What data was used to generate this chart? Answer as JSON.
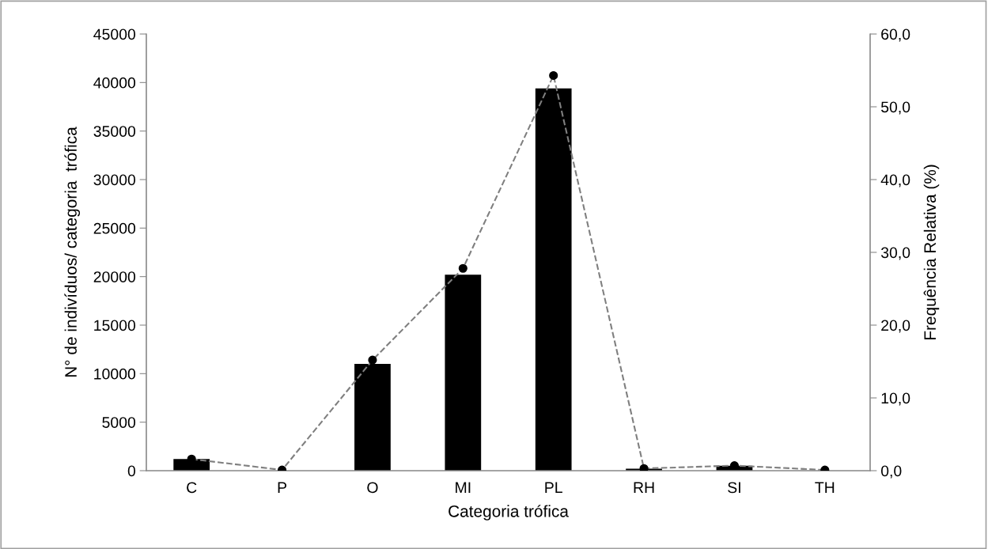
{
  "chart_data": {
    "type": "bar",
    "xlabel": "Categoria trófica",
    "ylabel": "N° de indivíduos/ categoria  trófica",
    "y2label": "Frequência Relativa (%)",
    "categories": [
      "C",
      "P",
      "O",
      "MI",
      "PL",
      "RH",
      "SI",
      "TH"
    ],
    "series": [
      {
        "color": "#000000",
        "values": [
          1200,
          0,
          11000,
          20200,
          39400,
          200,
          500,
          0
        ]
      },
      {
        "type": "line",
        "axis": "y2",
        "color": "#7f7f7f",
        "marker": "circle",
        "line_style": "dashed",
        "values": [
          1.6,
          0.1,
          15.2,
          27.8,
          54.3,
          0.3,
          0.7,
          0.1
        ]
      }
    ],
    "ylim": [
      0,
      45000
    ],
    "yticks": [
      0,
      5000,
      10000,
      15000,
      20000,
      25000,
      30000,
      35000,
      40000,
      45000
    ],
    "y2lim": [
      0,
      60
    ],
    "y2ticks": [
      {
        "value": 0,
        "label": "0,0"
      },
      {
        "value": 10,
        "label": "10,0"
      },
      {
        "value": 20,
        "label": "20,0"
      },
      {
        "value": 30,
        "label": "30,0"
      },
      {
        "value": 40,
        "label": "40,0"
      },
      {
        "value": 50,
        "label": "50,0"
      },
      {
        "value": 60,
        "label": "60,0"
      }
    ],
    "grid": false,
    "legend": false
  }
}
